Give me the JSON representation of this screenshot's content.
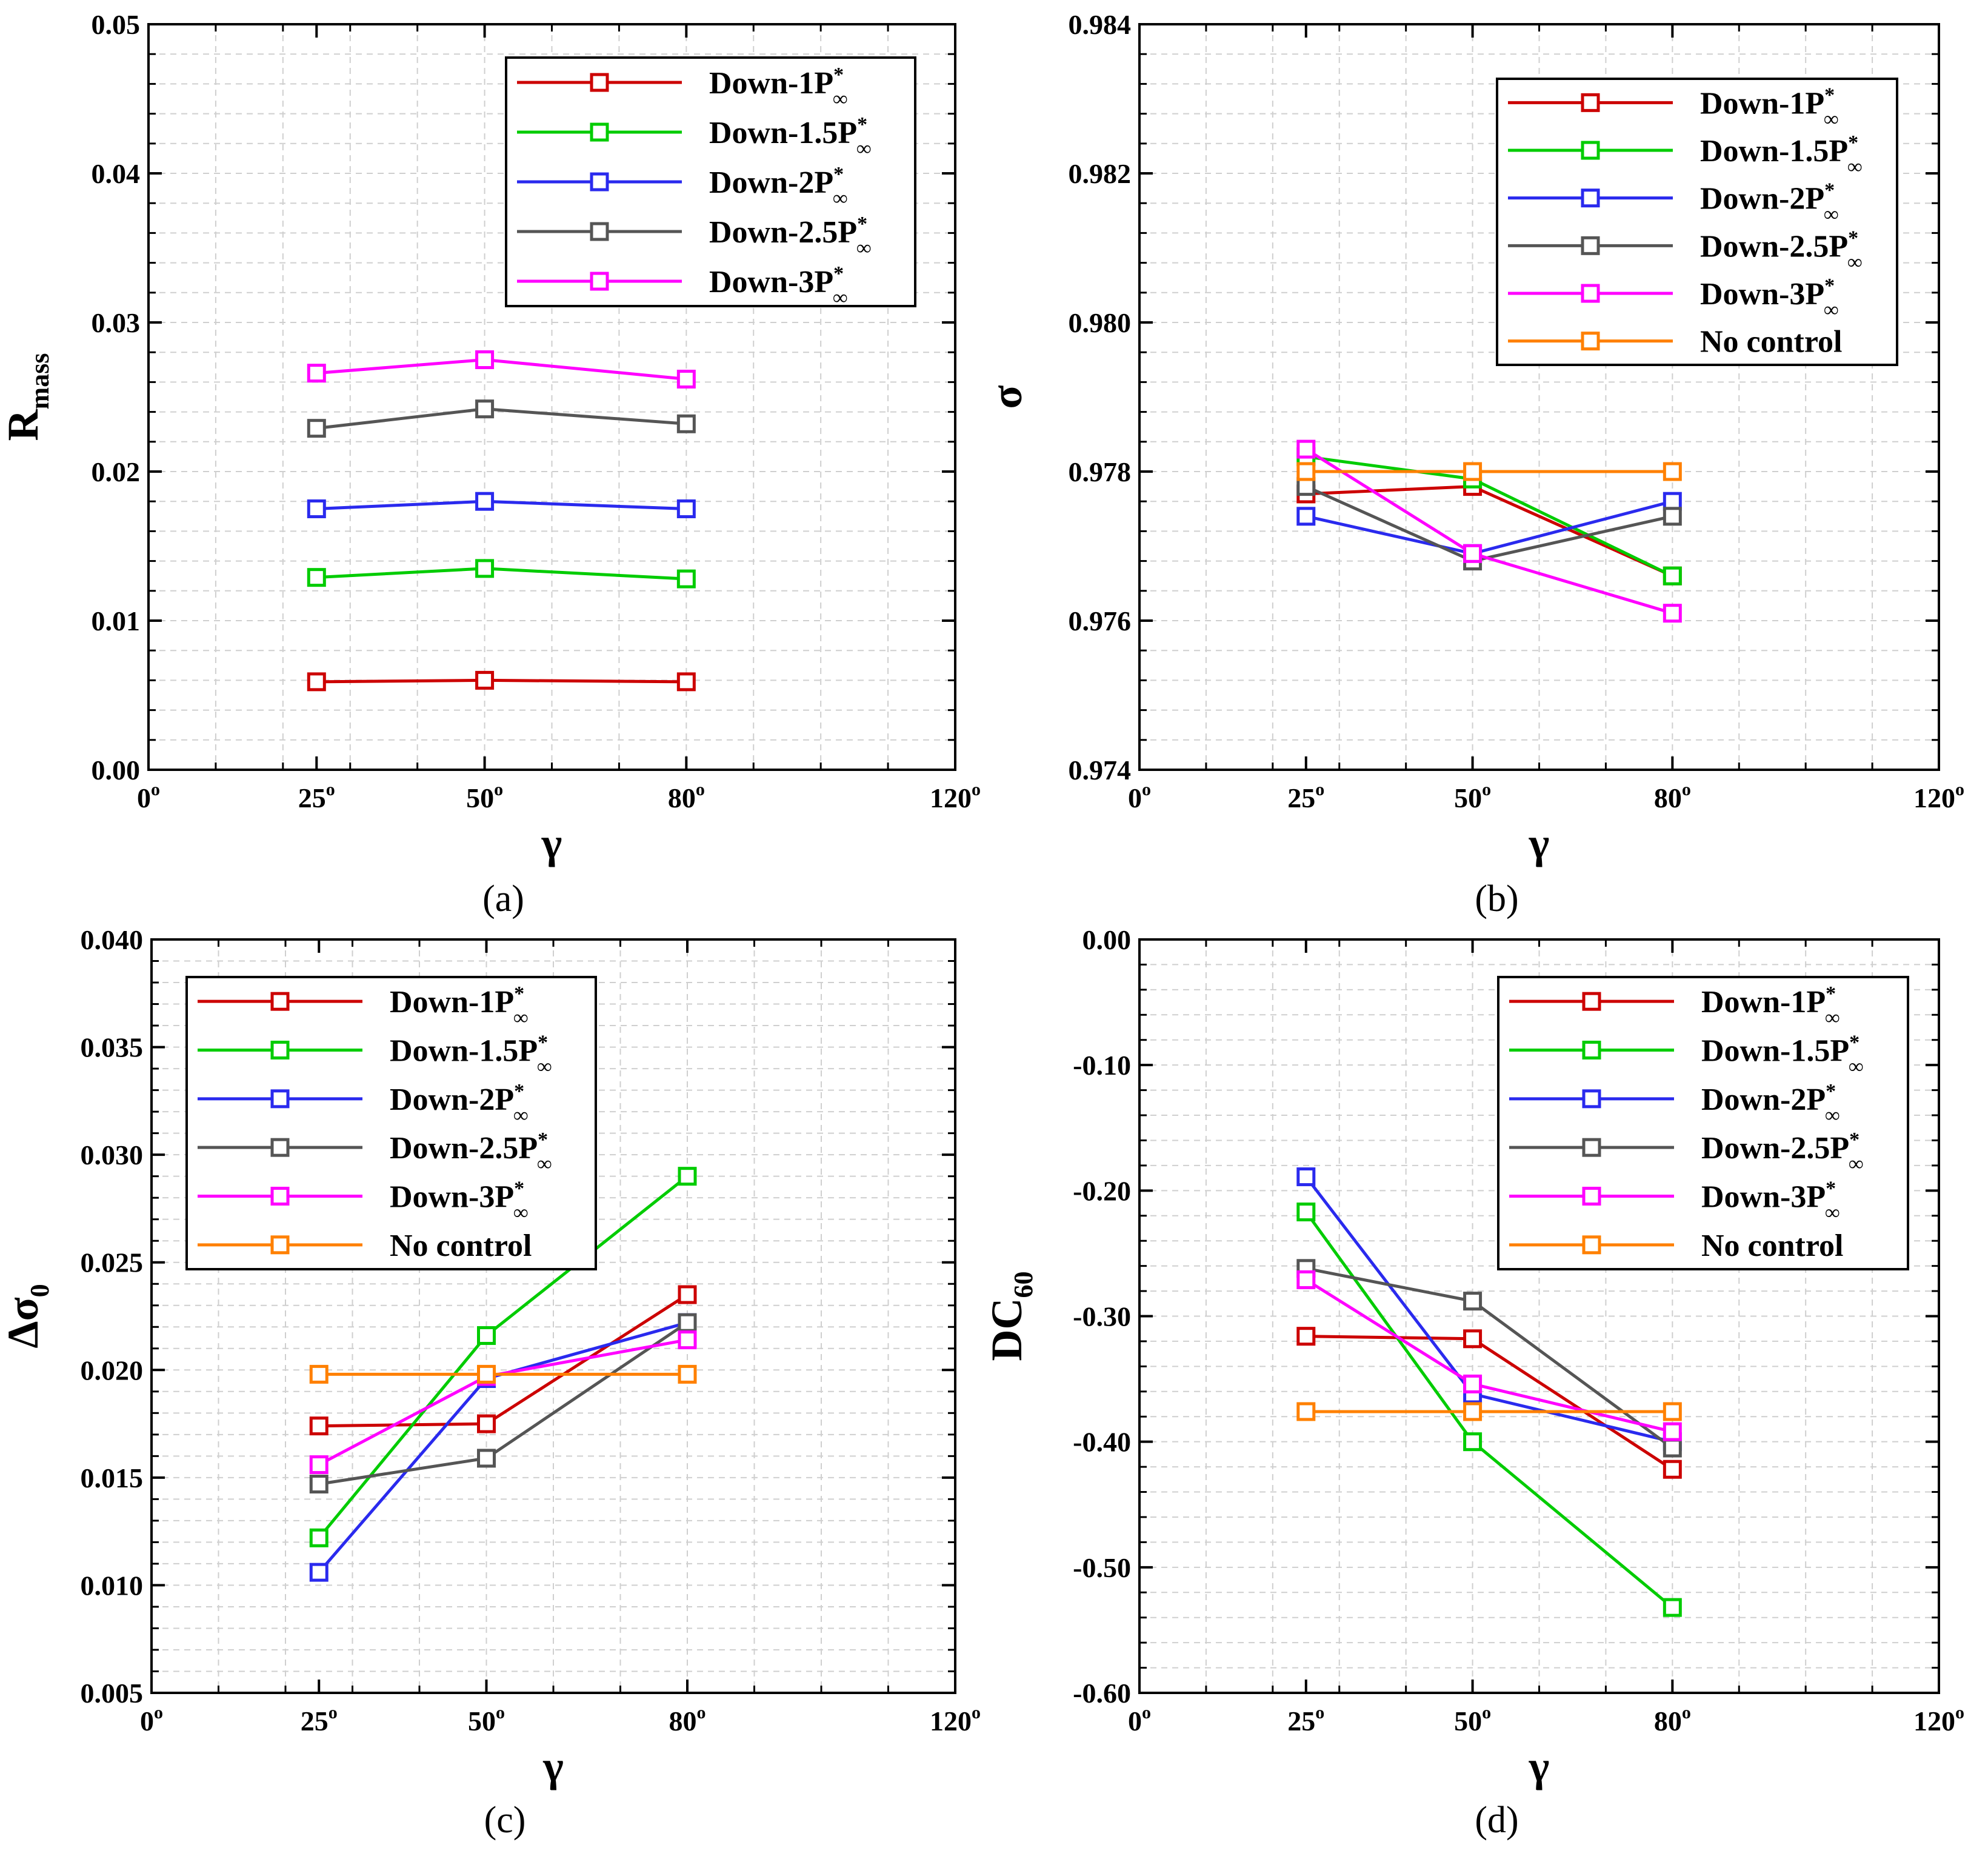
{
  "colors": {
    "Down-1P": "#cc0000",
    "Down-1.5P": "#00cc00",
    "Down-2P": "#2a2aee",
    "Down-2.5P": "#555555",
    "Down-3P": "#ff00ff",
    "No control": "#ff8000"
  },
  "legend_names": {
    "Down-1P": "Down-1P",
    "Down-1.5P": "Down-1.5P",
    "Down-2P": "Down-2P",
    "Down-2.5P": "Down-2.5P",
    "Down-3P": "Down-3P",
    "No control": "No control"
  },
  "legend_super": "*",
  "legend_sub": "∞",
  "chart_data": [
    {
      "id": "a",
      "type": "line",
      "panel_label": "(a)",
      "xlabel": "γ",
      "ylabel": "R",
      "ylabel_sub": "mass",
      "x_ticks": [
        "0",
        "25",
        "50",
        "80",
        "120"
      ],
      "degree_symbol": "o",
      "xlim": [
        0,
        120
      ],
      "ylim": [
        0,
        0.05
      ],
      "y_ticks": [
        "0.00",
        "0.01",
        "0.02",
        "0.03",
        "0.04",
        "0.05"
      ],
      "x": [
        25,
        50,
        80
      ],
      "legend_position": "top-right",
      "series": [
        {
          "name": "Down-1P",
          "values": [
            0.0059,
            0.006,
            0.0059
          ]
        },
        {
          "name": "Down-1.5P",
          "values": [
            0.0129,
            0.0135,
            0.0128
          ]
        },
        {
          "name": "Down-2P",
          "values": [
            0.0175,
            0.018,
            0.0175
          ]
        },
        {
          "name": "Down-2.5P",
          "values": [
            0.0229,
            0.0242,
            0.0232
          ]
        },
        {
          "name": "Down-3P",
          "values": [
            0.0266,
            0.0275,
            0.0262
          ]
        }
      ]
    },
    {
      "id": "b",
      "type": "line",
      "panel_label": "(b)",
      "xlabel": "γ",
      "ylabel": "σ",
      "ylabel_sub": "",
      "x_ticks": [
        "0",
        "25",
        "50",
        "80",
        "120"
      ],
      "degree_symbol": "o",
      "xlim": [
        0,
        120
      ],
      "ylim": [
        0.974,
        0.984
      ],
      "y_ticks": [
        "0.974",
        "0.976",
        "0.978",
        "0.980",
        "0.982",
        "0.984"
      ],
      "x": [
        25,
        50,
        80
      ],
      "legend_position": "top-right",
      "series": [
        {
          "name": "Down-1P",
          "values": [
            0.9777,
            0.9778,
            0.9766
          ]
        },
        {
          "name": "Down-1.5P",
          "values": [
            0.9782,
            0.9779,
            0.9766
          ]
        },
        {
          "name": "Down-2P",
          "values": [
            0.9774,
            0.9769,
            0.9776
          ]
        },
        {
          "name": "Down-2.5P",
          "values": [
            0.9778,
            0.9768,
            0.9774
          ]
        },
        {
          "name": "Down-3P",
          "values": [
            0.9783,
            0.9769,
            0.9761
          ]
        },
        {
          "name": "No control",
          "values": [
            0.978,
            0.978,
            0.978
          ]
        }
      ]
    },
    {
      "id": "c",
      "type": "line",
      "panel_label": "(c)",
      "xlabel": "γ",
      "ylabel": "Δσ",
      "ylabel_sub": "0",
      "x_ticks": [
        "0",
        "25",
        "50",
        "80",
        "120"
      ],
      "degree_symbol": "o",
      "xlim": [
        0,
        120
      ],
      "ylim": [
        0.005,
        0.04
      ],
      "y_ticks": [
        "0.005",
        "0.010",
        "0.015",
        "0.020",
        "0.025",
        "0.030",
        "0.035",
        "0.040"
      ],
      "x": [
        25,
        50,
        80
      ],
      "legend_position": "top-left",
      "series": [
        {
          "name": "Down-1P",
          "values": [
            0.0174,
            0.0175,
            0.0235
          ]
        },
        {
          "name": "Down-1.5P",
          "values": [
            0.0122,
            0.0216,
            0.029
          ]
        },
        {
          "name": "Down-2P",
          "values": [
            0.0106,
            0.0196,
            0.0222
          ]
        },
        {
          "name": "Down-2.5P",
          "values": [
            0.0147,
            0.0159,
            0.0222
          ]
        },
        {
          "name": "Down-3P",
          "values": [
            0.0156,
            0.0197,
            0.0214
          ]
        },
        {
          "name": "No control",
          "values": [
            0.0198,
            0.0198,
            0.0198
          ]
        }
      ]
    },
    {
      "id": "d",
      "type": "line",
      "panel_label": "(d)",
      "xlabel": "γ",
      "ylabel": "DC",
      "ylabel_sub": "60",
      "x_ticks": [
        "0",
        "25",
        "50",
        "80",
        "120"
      ],
      "degree_symbol": "o",
      "xlim": [
        0,
        120
      ],
      "ylim": [
        -0.6,
        0.0
      ],
      "y_ticks": [
        "-0.60",
        "-0.50",
        "-0.40",
        "-0.30",
        "-0.20",
        "-0.10",
        "0.00"
      ],
      "x": [
        25,
        50,
        80
      ],
      "legend_position": "top-right",
      "series": [
        {
          "name": "Down-1P",
          "values": [
            -0.316,
            -0.318,
            -0.422
          ]
        },
        {
          "name": "Down-1.5P",
          "values": [
            -0.217,
            -0.4,
            -0.532
          ]
        },
        {
          "name": "Down-2P",
          "values": [
            -0.189,
            -0.362,
            -0.4
          ]
        },
        {
          "name": "Down-2.5P",
          "values": [
            -0.262,
            -0.288,
            -0.405
          ]
        },
        {
          "name": "Down-3P",
          "values": [
            -0.271,
            -0.354,
            -0.392
          ]
        },
        {
          "name": "No control",
          "values": [
            -0.376,
            -0.376,
            -0.376
          ]
        }
      ]
    }
  ]
}
